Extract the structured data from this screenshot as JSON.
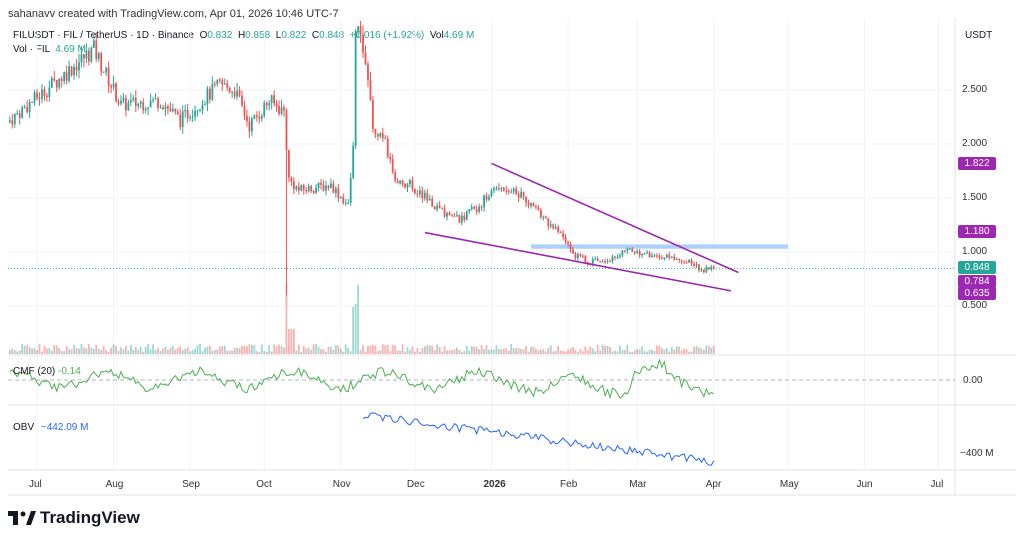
{
  "header": {
    "credit": "sahanavv created with TradingView.com, Apr 01, 2026 10:46 UTC-7"
  },
  "legend": {
    "symbol": "FILUSDT · FIL / TetherUS · 1D · Binance",
    "o_label": "O",
    "o": "0.832",
    "h_label": "H",
    "h": "0.858",
    "l_label": "L",
    "l": "0.822",
    "c_label": "C",
    "c": "0.848",
    "change": "+0.016 (+1.92%)",
    "vol_label": "Vol",
    "vol": "4.69 M"
  },
  "volume_legend": {
    "label": "Vol · FIL",
    "value": "4.69 M"
  },
  "currency": "USDT",
  "indicators": {
    "cmf_label": "CMF (20)",
    "cmf_value": "-0.14",
    "obv_label": "OBV",
    "obv_value": "−442.09 M"
  },
  "colors": {
    "up": "#26a69a",
    "down": "#ef5350",
    "trendline": "#9c27b0",
    "band": "#90bff9",
    "cmf": "#4caf50",
    "obv": "#2962ff"
  },
  "price_labels": [
    {
      "value": "1.822",
      "color": "#9c27b0"
    },
    {
      "value": "1.180",
      "color": "#9c27b0"
    },
    {
      "value": "0.848",
      "color": "#26a69a"
    },
    {
      "value": "0.784",
      "color": "#9c27b0"
    },
    {
      "value": "0.635",
      "color": "#9c27b0"
    }
  ],
  "cmf_axis": "0.00",
  "obv_axis": "−400 M",
  "logo": "TradingView",
  "chart_data": {
    "type": "candlestick",
    "title": "FILUSDT 1D Binance",
    "y_ticks": [
      "2.500",
      "2.000",
      "1.500",
      "1.000",
      "0.500"
    ],
    "y_tick_values": [
      2.5,
      2.0,
      1.5,
      1.0,
      0.5
    ],
    "x_ticks": [
      "Jul",
      "Aug",
      "Sep",
      "Oct",
      "Nov",
      "Dec",
      "2026",
      "Feb",
      "Mar",
      "Apr",
      "May",
      "Jun",
      "Jul"
    ],
    "x_tick_dates": [
      "2025-07-01",
      "2025-08-01",
      "2025-09-01",
      "2025-10-01",
      "2025-11-01",
      "2025-12-01",
      "2026-01-01",
      "2026-02-01",
      "2026-03-01",
      "2026-04-01",
      "2026-05-01",
      "2026-06-01",
      "2026-07-01"
    ],
    "close_path": [
      [
        "2025-06-19",
        2.2
      ],
      [
        "2025-07-02",
        2.45
      ],
      [
        "2025-07-24",
        2.88
      ],
      [
        "2025-08-04",
        2.36
      ],
      [
        "2025-08-20",
        2.4
      ],
      [
        "2025-08-28",
        2.22
      ],
      [
        "2025-09-13",
        2.55
      ],
      [
        "2025-09-19",
        2.5
      ],
      [
        "2025-09-25",
        2.17
      ],
      [
        "2025-10-03",
        2.4
      ],
      [
        "2025-10-09",
        2.3
      ],
      [
        "2025-10-11",
        1.67
      ],
      [
        "2025-10-15",
        1.57
      ],
      [
        "2025-10-28",
        1.62
      ],
      [
        "2025-11-04",
        1.43
      ],
      [
        "2025-11-06",
        1.95
      ],
      [
        "2025-11-07",
        3.1
      ],
      [
        "2025-11-11",
        2.78
      ],
      [
        "2025-11-14",
        2.13
      ],
      [
        "2025-11-19",
        1.99
      ],
      [
        "2025-11-23",
        1.67
      ],
      [
        "2025-11-29",
        1.62
      ],
      [
        "2025-12-11",
        1.39
      ],
      [
        "2025-12-19",
        1.3
      ],
      [
        "2025-12-27",
        1.43
      ],
      [
        "2026-01-04",
        1.62
      ],
      [
        "2026-01-13",
        1.53
      ],
      [
        "2026-01-21",
        1.34
      ],
      [
        "2026-01-29",
        1.16
      ],
      [
        "2026-02-04",
        0.97
      ],
      [
        "2026-02-10",
        0.91
      ],
      [
        "2026-02-18",
        0.94
      ],
      [
        "2026-02-26",
        1.02
      ],
      [
        "2026-03-06",
        0.97
      ],
      [
        "2026-03-16",
        0.94
      ],
      [
        "2026-03-22",
        0.91
      ],
      [
        "2026-03-28",
        0.83
      ],
      [
        "2026-04-01",
        0.848
      ]
    ],
    "annotations": {
      "upper_trendline": [
        [
          "2026-01-01",
          1.82
        ],
        [
          "2026-04-11",
          0.81
        ]
      ],
      "lower_trendline": [
        [
          "2025-12-05",
          1.18
        ],
        [
          "2026-04-08",
          0.64
        ]
      ],
      "resistance_band": [
        [
          "2026-01-17",
          1.03
        ],
        [
          "2026-05-01",
          1.07
        ]
      ]
    },
    "ylim": [
      0.35,
      2.9
    ]
  }
}
